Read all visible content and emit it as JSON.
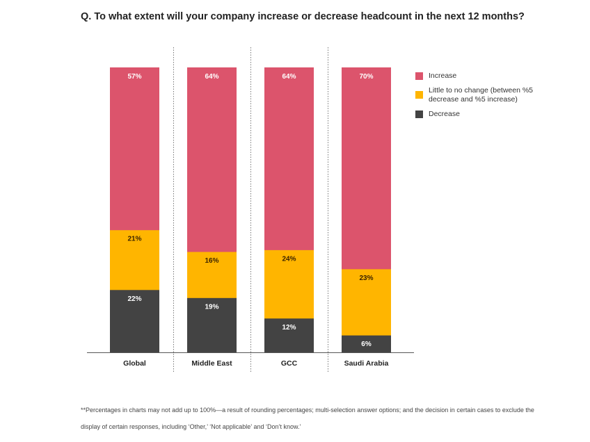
{
  "chart_data": {
    "type": "bar",
    "stacked": true,
    "title": "Q. To what extent will your company increase or decrease headcount in the next 12 months?",
    "xlabel": "",
    "ylabel": "",
    "categories": [
      "Global",
      "Middle East",
      "GCC",
      "Saudi Arabia"
    ],
    "series": [
      {
        "name": "Decrease",
        "color": "#434343",
        "label_color": "#ffffff",
        "values": [
          22,
          19,
          12,
          6
        ]
      },
      {
        "name": "Little to no change (between %5 decrease and %5 increase)",
        "color": "#ffb500",
        "label_color": "#3a2200",
        "values": [
          21,
          16,
          24,
          23
        ]
      },
      {
        "name": "Increase",
        "color": "#dc546c",
        "label_color": "#ffffff",
        "values": [
          57,
          64,
          64,
          70
        ]
      }
    ],
    "value_suffix": "%",
    "grid": false,
    "separators": "dotted-between-categories",
    "legend_position": "right"
  },
  "legend": {
    "items": [
      {
        "label": "Increase",
        "color": "#dc546c"
      },
      {
        "label": "Little to no change (between %5 decrease and %5 increase)",
        "color": "#ffb500"
      },
      {
        "label": "Decrease",
        "color": "#434343"
      }
    ]
  },
  "footnote": "**Percentages in charts may not add up to 100%—a result of rounding percentages; multi-selection answer options; and the decision in certain cases to exclude the display of certain responses, including ‘Other,’ ‘Not applicable’ and ‘Don’t know.’"
}
